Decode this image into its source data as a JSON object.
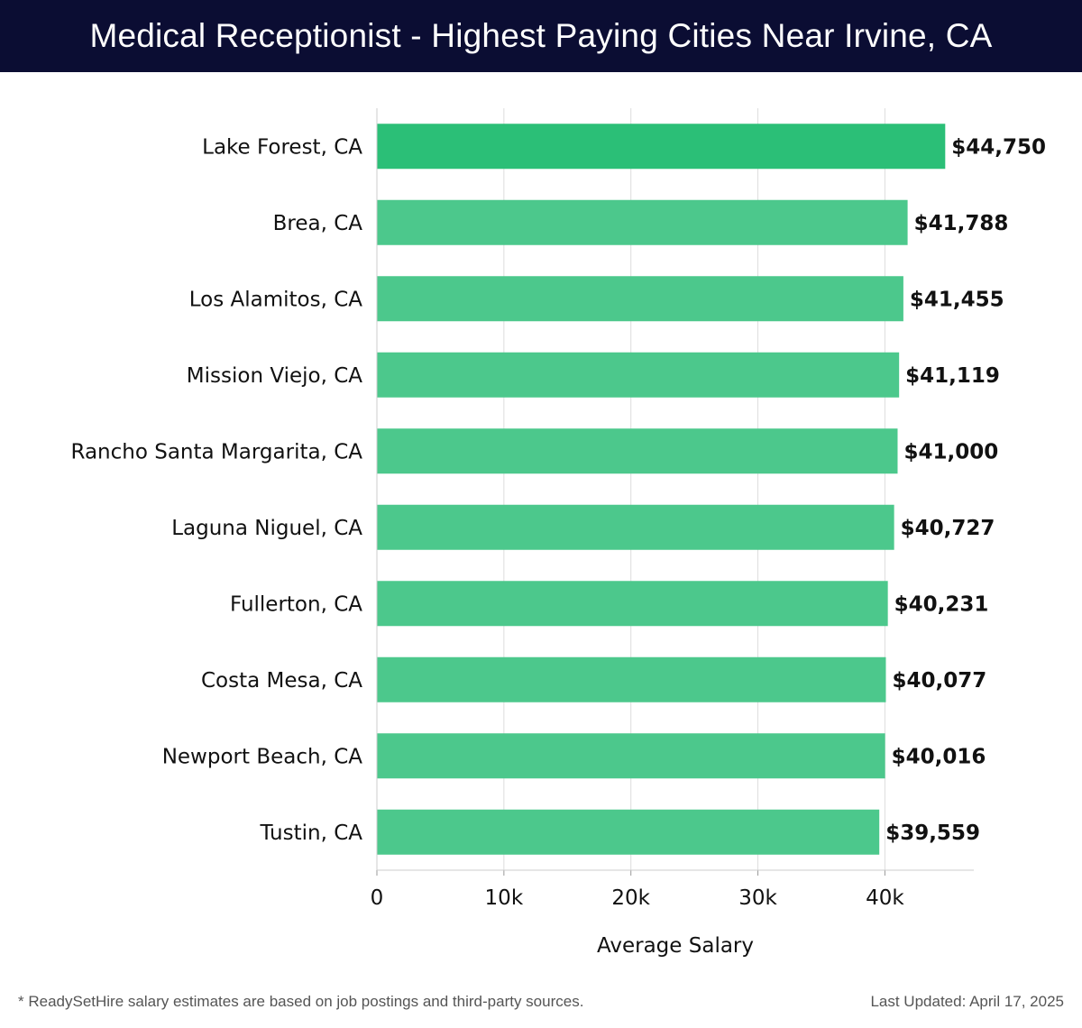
{
  "header": {
    "title": "Medical Receptionist - Highest Paying Cities Near Irvine, CA"
  },
  "footer": {
    "note": "* ReadySetHire salary estimates are based on job postings and third-party sources.",
    "updated": "Last Updated: April 17, 2025"
  },
  "chart_data": {
    "type": "bar",
    "orientation": "horizontal",
    "title": "Medical Receptionist - Highest Paying Cities Near Irvine, CA",
    "xlabel": "Average Salary",
    "ylabel": "",
    "xlim": [
      0,
      47000
    ],
    "xticks": [
      0,
      10000,
      20000,
      30000,
      40000
    ],
    "xtick_labels": [
      "0",
      "10k",
      "20k",
      "30k",
      "40k"
    ],
    "grid": "vertical",
    "categories": [
      "Lake Forest, CA",
      "Brea, CA",
      "Los Alamitos, CA",
      "Mission Viejo, CA",
      "Rancho Santa Margarita, CA",
      "Laguna Niguel, CA",
      "Fullerton, CA",
      "Costa Mesa, CA",
      "Newport Beach, CA",
      "Tustin, CA"
    ],
    "values": [
      44750,
      41788,
      41455,
      41119,
      41000,
      40727,
      40231,
      40077,
      40016,
      39559
    ],
    "value_labels": [
      "$44,750",
      "$41,788",
      "$41,455",
      "$41,119",
      "$41,000",
      "$40,727",
      "$40,231",
      "$40,077",
      "$40,016",
      "$39,559"
    ],
    "colors": {
      "top_bar": "#2bbf77",
      "bar": "#4cc88c",
      "grid": "#dddddd",
      "text": "#111111"
    }
  }
}
